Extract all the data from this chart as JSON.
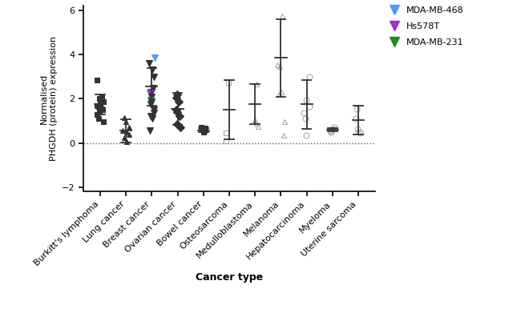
{
  "categories": [
    "Burkitt's lymphoma",
    "Lung cancer",
    "Breast cancer",
    "Ovarian cancer",
    "Bowel cancer",
    "Osteosarcoma",
    "Medulloblastoma",
    "Melanoma",
    "Hepatocarcinoma",
    "Myeloma",
    "Uterine sarcoma"
  ],
  "means": [
    1.75,
    0.55,
    2.55,
    1.55,
    0.58,
    1.5,
    1.75,
    3.85,
    1.75,
    0.6,
    1.05
  ],
  "errors": [
    0.45,
    0.52,
    0.85,
    0.72,
    0.1,
    1.35,
    0.9,
    1.75,
    1.1,
    0.08,
    0.65
  ],
  "scatter_data": {
    "Burkitt's lymphoma": [
      2.85,
      2.1,
      2.0,
      1.9,
      1.85,
      1.8,
      1.75,
      1.7,
      1.65,
      1.6,
      1.55,
      1.5,
      1.45,
      1.3,
      1.1,
      0.95
    ],
    "Lung cancer": [
      1.15,
      0.95,
      0.7,
      0.55,
      0.5,
      0.4,
      0.25,
      0.05
    ],
    "Breast cancer_colors": [
      {
        "val": 3.85,
        "color": "#5599ff",
        "filled": true
      },
      {
        "val": 3.6,
        "color": "#333333",
        "filled": true
      },
      {
        "val": 3.3,
        "color": "#333333",
        "filled": true
      },
      {
        "val": 3.0,
        "color": "#333333",
        "filled": true
      },
      {
        "val": 2.5,
        "color": "#333333",
        "filled": true
      },
      {
        "val": 2.3,
        "color": "#333333",
        "filled": true
      },
      {
        "val": 2.25,
        "color": "#9B30D0",
        "filled": true
      },
      {
        "val": 2.1,
        "color": "#333333",
        "filled": true
      },
      {
        "val": 1.95,
        "color": "#228B22",
        "filled": true
      },
      {
        "val": 1.85,
        "color": "#333333",
        "filled": true
      },
      {
        "val": 1.75,
        "color": "#333333",
        "filled": true
      },
      {
        "val": 1.5,
        "color": "#333333",
        "filled": true
      },
      {
        "val": 1.35,
        "color": "#333333",
        "filled": true
      },
      {
        "val": 1.2,
        "color": "#333333",
        "filled": true
      },
      {
        "val": 1.1,
        "color": "#333333",
        "filled": true
      },
      {
        "val": 0.55,
        "color": "#333333",
        "filled": true
      }
    ],
    "Ovarian cancer": [
      2.2,
      2.05,
      1.85,
      1.5,
      1.4,
      1.2,
      0.85,
      0.7
    ],
    "Bowel cancer": [
      0.72,
      0.67,
      0.63,
      0.6,
      0.56,
      0.5
    ],
    "Osteosarcoma": [
      2.75,
      0.45,
      0.1
    ],
    "Medulloblastoma": [
      2.65,
      1.05,
      0.9,
      0.75
    ],
    "Melanoma": [
      5.75,
      3.55,
      3.45,
      2.3,
      2.2,
      0.95,
      0.35
    ],
    "Hepatocarcinoma": [
      3.0,
      1.95,
      1.65,
      1.35,
      1.1,
      0.35
    ],
    "Myeloma": [
      0.7,
      0.65,
      0.58,
      0.55,
      0.5
    ],
    "Uterine sarcoma": [
      1.55,
      1.1,
      0.65,
      0.5,
      0.45
    ]
  },
  "scatter_shapes": {
    "Burkitt's lymphoma": "s",
    "Lung cancer": "^",
    "Breast cancer": "v",
    "Ovarian cancer": "D",
    "Bowel cancer": "s",
    "Osteosarcoma": "s",
    "Medulloblastoma": "^",
    "Melanoma": "^",
    "Hepatocarcinoma": "o",
    "Myeloma": "o",
    "Uterine sarcoma": "o"
  },
  "scatter_filled": {
    "Burkitt's lymphoma": true,
    "Lung cancer": true,
    "Breast cancer": true,
    "Ovarian cancer": true,
    "Bowel cancer": true,
    "Osteosarcoma": false,
    "Medulloblastoma": false,
    "Melanoma": false,
    "Hepatocarcinoma": false,
    "Myeloma": false,
    "Uterine sarcoma": false
  },
  "legend": [
    {
      "label": "MDA-MB-468",
      "color": "#5599ff",
      "marker": "v"
    },
    {
      "label": "Hs578T",
      "color": "#9B30D0",
      "marker": "v"
    },
    {
      "label": "MDA-MB-231",
      "color": "#228B22",
      "marker": "v"
    }
  ],
  "ylabel": "Normalised\nPHGDH (protein) expression",
  "xlabel": "Cancer type",
  "ylim": [
    -2.2,
    6.2
  ],
  "yticks": [
    -2,
    0,
    2,
    4,
    6
  ],
  "filled_color": "#333333",
  "open_color": "#aaaaaa",
  "mean_line_color": "#333333",
  "error_color": "#333333",
  "dotted_line_y": 0
}
